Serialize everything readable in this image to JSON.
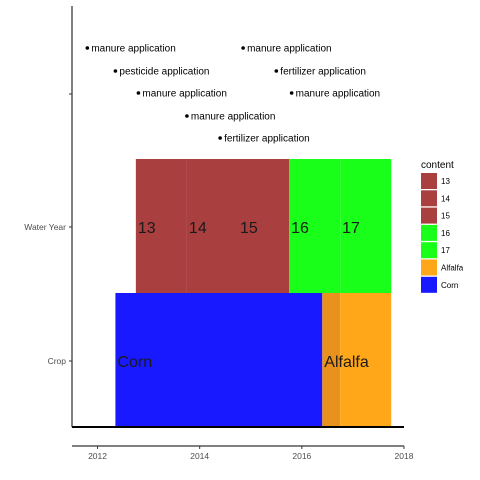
{
  "chart_data": {
    "type": "timeline",
    "x_range": [
      2011.5,
      2018
    ],
    "x_ticks": [
      2012,
      2014,
      2016,
      2018
    ],
    "x_tick_labels": [
      "2012",
      "2014",
      "2016",
      "2018"
    ],
    "rows": [
      "Crop",
      "Water Year"
    ],
    "grid": false,
    "legend": {
      "title": "content",
      "position": "right",
      "entries": [
        {
          "label": "13",
          "color": "#aa3f3f"
        },
        {
          "label": "14",
          "color": "#aa3f3f"
        },
        {
          "label": "15",
          "color": "#aa3f3f"
        },
        {
          "label": "16",
          "color": "#19ff19"
        },
        {
          "label": "17",
          "color": "#19ff19"
        },
        {
          "label": "Alfalfa",
          "color": "#ffa719"
        },
        {
          "label": "Corn",
          "color": "#1919ff"
        }
      ]
    },
    "bars": [
      {
        "row": "Crop",
        "label": "Corn",
        "start": 2012.35,
        "end": 2016.4,
        "color": "#1919ff",
        "text": "Corn"
      },
      {
        "row": "Crop",
        "label": "Alfalfa",
        "start": 2016.4,
        "end": 2016.75,
        "color": "#e8921d",
        "text": "Alfalfa"
      },
      {
        "row": "Crop",
        "label": "Alfalfa",
        "start": 2016.75,
        "end": 2017.75,
        "color": "#ffa719",
        "text": ""
      },
      {
        "row": "Water Year",
        "label": "13",
        "start": 2012.75,
        "end": 2013.75,
        "color": "#aa3f3f",
        "text": "13"
      },
      {
        "row": "Water Year",
        "label": "14",
        "start": 2013.75,
        "end": 2014.75,
        "color": "#aa3f3f",
        "text": "14"
      },
      {
        "row": "Water Year",
        "label": "15",
        "start": 2014.75,
        "end": 2015.75,
        "color": "#aa3f3f",
        "text": "15"
      },
      {
        "row": "Water Year",
        "label": "16",
        "start": 2015.75,
        "end": 2016.75,
        "color": "#19ff19",
        "text": "16"
      },
      {
        "row": "Water Year",
        "label": "17",
        "start": 2016.75,
        "end": 2017.75,
        "color": "#19ff19",
        "text": "17"
      }
    ],
    "events": [
      {
        "label": "manure application",
        "x": 2011.8,
        "level": 1
      },
      {
        "label": "manure application",
        "x": 2014.85,
        "level": 1
      },
      {
        "label": "pesticide application",
        "x": 2012.35,
        "level": 2
      },
      {
        "label": "fertilizer application",
        "x": 2015.5,
        "level": 2
      },
      {
        "label": "manure application",
        "x": 2012.8,
        "level": 3
      },
      {
        "label": "manure application",
        "x": 2015.8,
        "level": 3
      },
      {
        "label": "manure application",
        "x": 2013.75,
        "level": 4
      },
      {
        "label": "fertilizer application",
        "x": 2014.4,
        "level": 5
      }
    ]
  }
}
